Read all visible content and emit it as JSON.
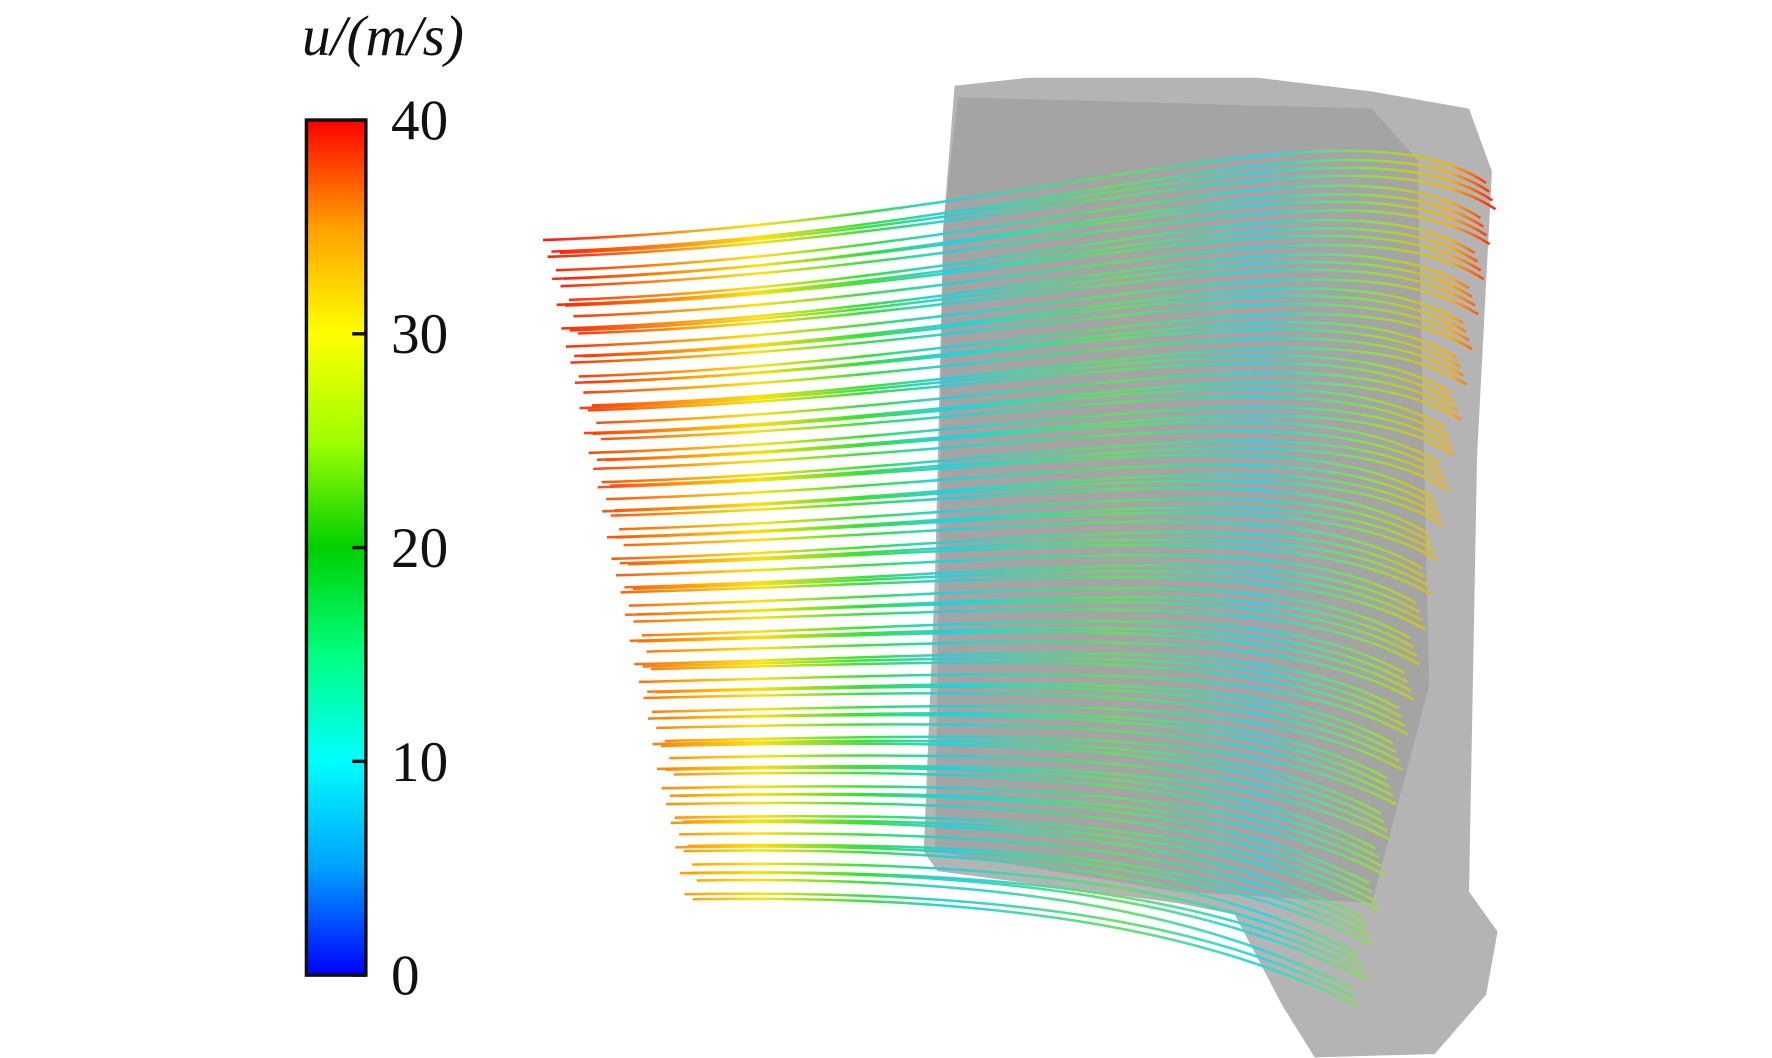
{
  "chart_data": {
    "type": "colorbar",
    "title": "u/(m/s)",
    "clim": [
      0,
      40
    ],
    "ticks": [
      0,
      10,
      20,
      30,
      40
    ],
    "colors": [
      "#0000ff",
      "#00a0ff",
      "#00ffff",
      "#00ff80",
      "#00d000",
      "#a0ff00",
      "#ffff00",
      "#ffa000",
      "#ff0000"
    ]
  }
}
